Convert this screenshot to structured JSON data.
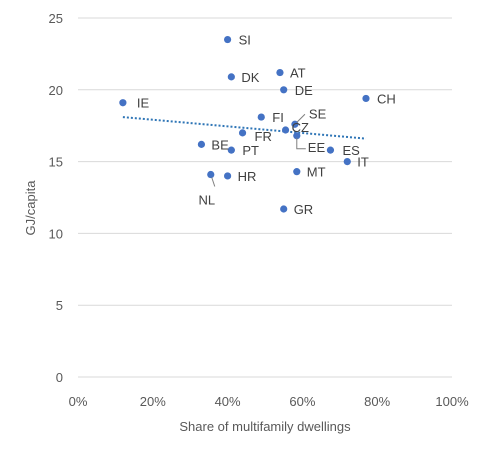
{
  "chart_data": {
    "type": "scatter",
    "title": "",
    "xlabel": "Share of multifamily dwellings",
    "ylabel": "GJ/capita",
    "xlim": [
      0,
      1
    ],
    "ylim": [
      0,
      25
    ],
    "x_ticks": [
      0,
      0.2,
      0.4,
      0.6,
      0.8,
      1.0
    ],
    "x_tick_labels": [
      "0%",
      "20%",
      "40%",
      "60%",
      "80%",
      "100%"
    ],
    "y_ticks": [
      0,
      5,
      10,
      15,
      20,
      25
    ],
    "y_tick_labels": [
      "0",
      "5",
      "10",
      "15",
      "20",
      "25"
    ],
    "grid": "horizontal",
    "legend": "none",
    "point_color": "#4472c4",
    "trendline": {
      "style": "dotted-linear",
      "color": "#2e75b6",
      "from": [
        0.12,
        18.1
      ],
      "to": [
        0.77,
        16.6
      ]
    },
    "points": [
      {
        "label": "SI",
        "x": 0.4,
        "y": 23.5
      },
      {
        "label": "DK",
        "x": 0.41,
        "y": 20.9
      },
      {
        "label": "AT",
        "x": 0.54,
        "y": 21.2
      },
      {
        "label": "DE",
        "x": 0.55,
        "y": 20.0
      },
      {
        "label": "CH",
        "x": 0.77,
        "y": 19.4
      },
      {
        "label": "IE",
        "x": 0.12,
        "y": 19.1
      },
      {
        "label": "FI",
        "x": 0.49,
        "y": 18.1
      },
      {
        "label": "SE",
        "x": 0.58,
        "y": 17.6
      },
      {
        "label": "FR",
        "x": 0.44,
        "y": 17.0
      },
      {
        "label": "CZ",
        "x": 0.555,
        "y": 17.2
      },
      {
        "label": "EE",
        "x": 0.585,
        "y": 16.8
      },
      {
        "label": "BE",
        "x": 0.33,
        "y": 16.2
      },
      {
        "label": "PT",
        "x": 0.41,
        "y": 15.8
      },
      {
        "label": "ES",
        "x": 0.675,
        "y": 15.8
      },
      {
        "label": "IT",
        "x": 0.72,
        "y": 15.0
      },
      {
        "label": "NL",
        "x": 0.355,
        "y": 14.1
      },
      {
        "label": "HR",
        "x": 0.4,
        "y": 14.0
      },
      {
        "label": "MT",
        "x": 0.585,
        "y": 14.3
      },
      {
        "label": "GR",
        "x": 0.55,
        "y": 11.7
      }
    ]
  }
}
